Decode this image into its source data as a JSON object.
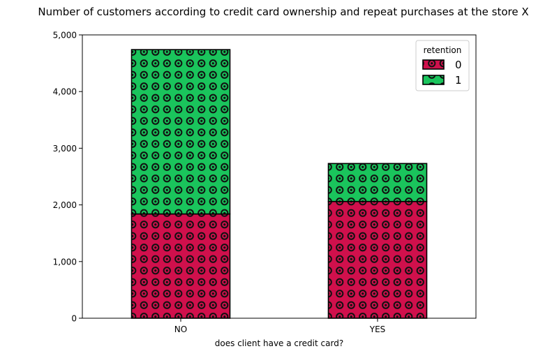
{
  "chart_data": {
    "type": "bar",
    "stacked": true,
    "title": "Number of customers according to credit card ownership and repeat purchases at the store X",
    "xlabel": "does client have a credit card?",
    "ylabel": "",
    "categories": [
      "NO",
      "YES"
    ],
    "ylim": [
      0,
      5000
    ],
    "yticks": [
      0,
      1000,
      2000,
      3000,
      4000,
      5000
    ],
    "ytick_labels": [
      "0",
      "1,000",
      "2,000",
      "3,000",
      "4,000",
      "5,000"
    ],
    "grid": false,
    "legend": {
      "title": "retention",
      "placement": "top-right"
    },
    "series": [
      {
        "name": "0",
        "values": [
          1840,
          2060
        ],
        "color": "#d0104c",
        "pattern": "circles"
      },
      {
        "name": "1",
        "values": [
          2900,
          670
        ],
        "color": "#1ac45c",
        "pattern": "circles"
      }
    ]
  }
}
